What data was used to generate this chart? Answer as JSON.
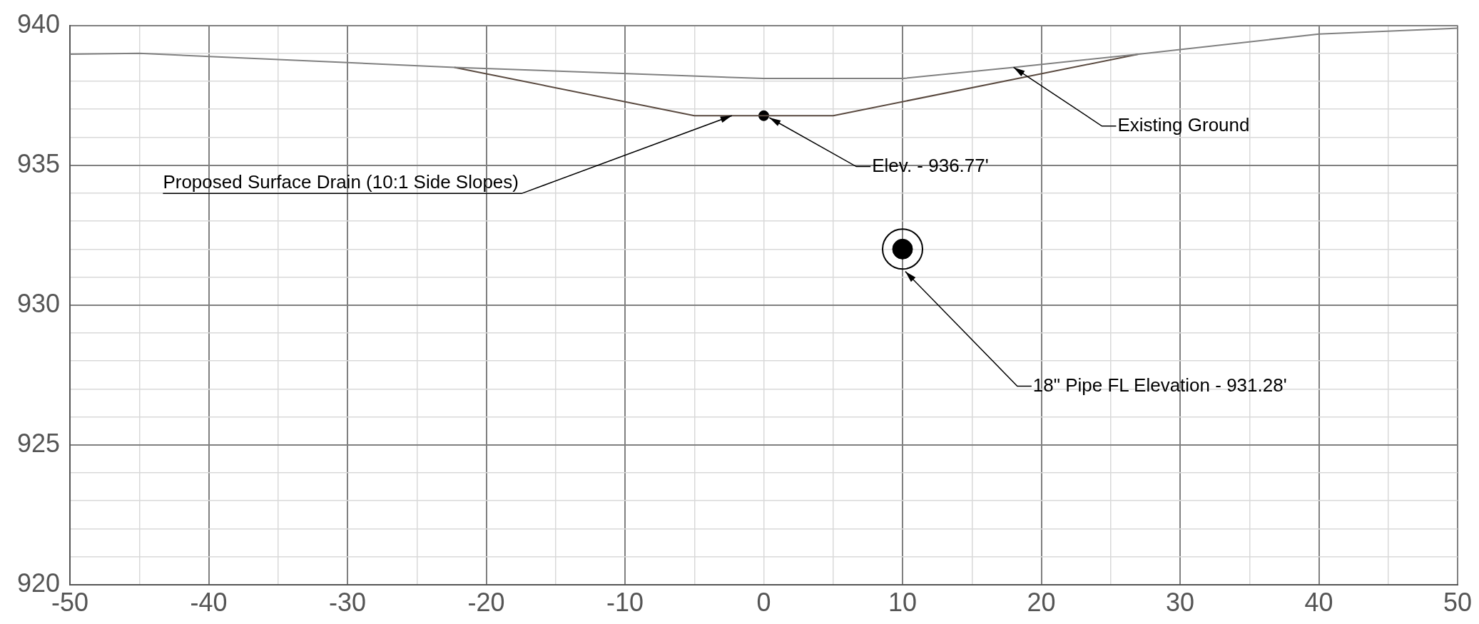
{
  "chart_data": {
    "type": "line",
    "xlim": [
      -50,
      50
    ],
    "ylim": [
      920,
      940
    ],
    "xticks": [
      -50,
      {
        "value": -45,
        "label": null
      },
      -40,
      {
        "value": -35,
        "label": null
      },
      -30,
      {
        "value": -25,
        "label": null
      },
      -20,
      {
        "value": -15,
        "label": null
      },
      -10,
      {
        "value": -5,
        "label": null
      },
      0,
      {
        "value": 5,
        "label": null
      },
      10,
      {
        "value": 15,
        "label": null
      },
      20,
      {
        "value": 25,
        "label": null
      },
      30,
      {
        "value": 35,
        "label": null
      },
      40,
      {
        "value": 45,
        "label": null
      },
      50
    ],
    "yticks": [
      920,
      {
        "value": 921,
        "label": null
      },
      {
        "value": 922,
        "label": null
      },
      {
        "value": 923,
        "label": null
      },
      {
        "value": 924,
        "label": null
      },
      925,
      {
        "value": 926,
        "label": null
      },
      {
        "value": 927,
        "label": null
      },
      {
        "value": 928,
        "label": null
      },
      {
        "value": 929,
        "label": null
      },
      930,
      {
        "value": 931,
        "label": null
      },
      {
        "value": 932,
        "label": null
      },
      {
        "value": 933,
        "label": null
      },
      {
        "value": 934,
        "label": null
      },
      935,
      {
        "value": 936,
        "label": null
      },
      {
        "value": 937,
        "label": null
      },
      {
        "value": 938,
        "label": null
      },
      {
        "value": 939,
        "label": null
      },
      940
    ],
    "grid": true,
    "legend": false,
    "series": [
      {
        "color": "#808080",
        "marker": "none",
        "x": [
          -50,
          -45,
          -22.3,
          0,
          10,
          18,
          27,
          40,
          50
        ],
        "values": [
          938.97,
          939.0,
          938.5,
          938.1,
          938.1,
          938.5,
          938.97,
          939.69,
          939.9
        ]
      },
      {
        "color": "#5a4a40",
        "marker": "none",
        "x": [
          -22.3,
          -5,
          5,
          27
        ],
        "values": [
          938.5,
          936.77,
          936.77,
          938.97
        ]
      },
      {
        "type": "scatter",
        "color": "#000000",
        "marker": "circle",
        "x": [
          0
        ],
        "values": [
          936.77
        ]
      },
      {
        "type": "scatter",
        "color": "#000000",
        "marker": "circle",
        "x": [
          10
        ],
        "values": [
          932.0
        ]
      }
    ],
    "annotations": [
      {
        "text": "Proposed Surface Drain (10:1 Side Slopes)",
        "x": -2.3,
        "y": 936.77
      },
      {
        "text": "Elev. - 936.77'",
        "x": 0.4,
        "y": 936.7
      },
      {
        "text": "Existing Ground",
        "x": 18,
        "y": 938.5
      },
      {
        "text": "18\" Pipe FL Elevation - 931.28'",
        "x": 10.2,
        "y": 931.2
      }
    ]
  }
}
